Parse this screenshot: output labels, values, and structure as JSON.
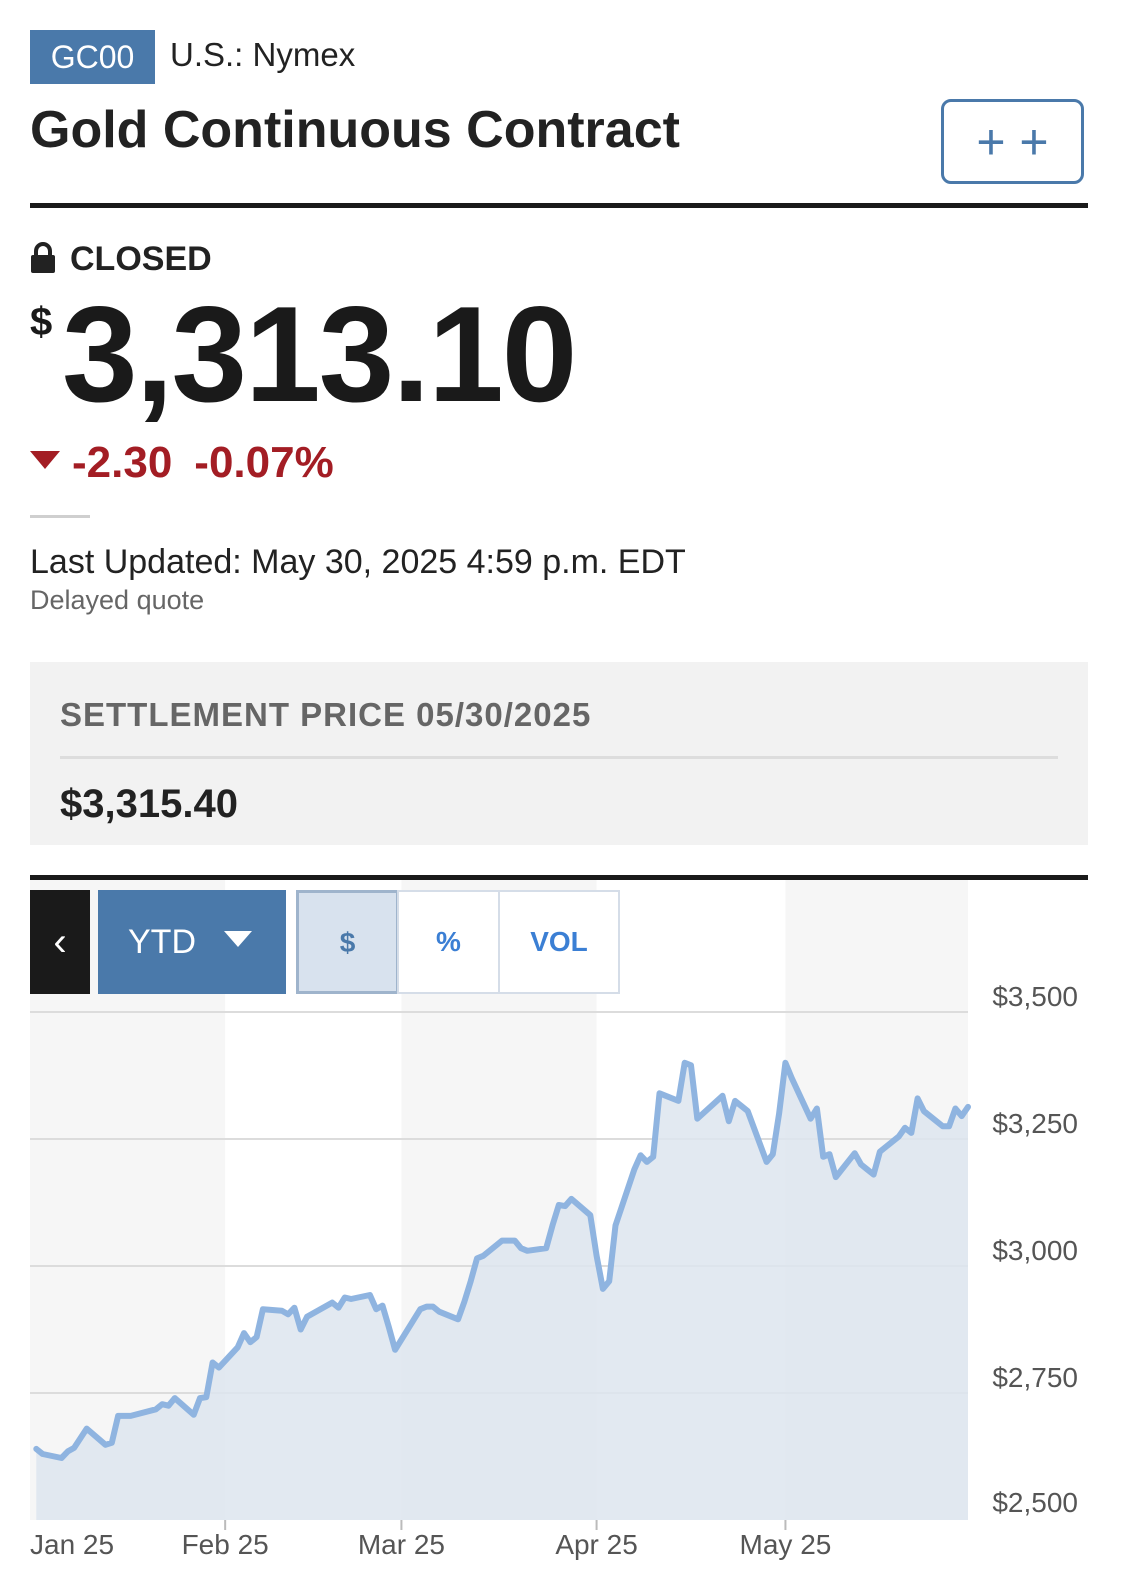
{
  "header": {
    "ticker": "GC00",
    "exchange": "U.S.: Nymex",
    "name": "Gold Continuous Contract",
    "watch_label": "+ +"
  },
  "quote": {
    "status": "CLOSED",
    "currency": "$",
    "price": "3,313.10",
    "change": "-2.30",
    "change_pct": "-0.07%",
    "direction": "down",
    "last_updated": "Last Updated: May 30, 2025 4:59 p.m. EDT",
    "delayed": "Delayed quote"
  },
  "settlement": {
    "label": "SETTLEMENT PRICE 05/30/2025",
    "value": "$3,315.40"
  },
  "chart_controls": {
    "back": "‹",
    "range": "YTD",
    "modes": [
      "$",
      "%",
      "VOL"
    ],
    "active_mode": "$"
  },
  "colors": {
    "accent": "#4a79aa",
    "negative": "#a31d24",
    "line": "#8fb4e0",
    "fill": "#dde5ee"
  },
  "chart_data": {
    "type": "area",
    "x_ticks": [
      "Jan 25",
      "Feb 25",
      "Mar 25",
      "Apr 25",
      "May 25"
    ],
    "y_ticks": [
      "$2,500",
      "$2,750",
      "$3,000",
      "$3,250",
      "$3,500"
    ],
    "ylim": [
      2500,
      3500
    ],
    "grid": true,
    "y_axis_side": "right",
    "x": [
      "2025-01-02",
      "2025-01-03",
      "2025-01-06",
      "2025-01-07",
      "2025-01-08",
      "2025-01-10",
      "2025-01-13",
      "2025-01-14",
      "2025-01-15",
      "2025-01-17",
      "2025-01-21",
      "2025-01-22",
      "2025-01-23",
      "2025-01-24",
      "2025-01-27",
      "2025-01-28",
      "2025-01-29",
      "2025-01-30",
      "2025-01-31",
      "2025-02-03",
      "2025-02-04",
      "2025-02-05",
      "2025-02-06",
      "2025-02-07",
      "2025-02-10",
      "2025-02-11",
      "2025-02-12",
      "2025-02-13",
      "2025-02-14",
      "2025-02-18",
      "2025-02-19",
      "2025-02-20",
      "2025-02-21",
      "2025-02-24",
      "2025-02-25",
      "2025-02-26",
      "2025-02-27",
      "2025-02-28",
      "2025-03-03",
      "2025-03-04",
      "2025-03-05",
      "2025-03-06",
      "2025-03-07",
      "2025-03-10",
      "2025-03-11",
      "2025-03-12",
      "2025-03-13",
      "2025-03-14",
      "2025-03-17",
      "2025-03-18",
      "2025-03-19",
      "2025-03-20",
      "2025-03-21",
      "2025-03-24",
      "2025-03-25",
      "2025-03-26",
      "2025-03-27",
      "2025-03-28",
      "2025-03-31",
      "2025-04-01",
      "2025-04-02",
      "2025-04-03",
      "2025-04-04",
      "2025-04-07",
      "2025-04-08",
      "2025-04-09",
      "2025-04-10",
      "2025-04-11",
      "2025-04-14",
      "2025-04-15",
      "2025-04-16",
      "2025-04-17",
      "2025-04-21",
      "2025-04-22",
      "2025-04-23",
      "2025-04-24",
      "2025-04-25",
      "2025-04-28",
      "2025-04-29",
      "2025-04-30",
      "2025-05-01",
      "2025-05-02",
      "2025-05-05",
      "2025-05-06",
      "2025-05-07",
      "2025-05-08",
      "2025-05-09",
      "2025-05-12",
      "2025-05-13",
      "2025-05-14",
      "2025-05-15",
      "2025-05-16",
      "2025-05-19",
      "2025-05-20",
      "2025-05-21",
      "2025-05-22",
      "2025-05-23",
      "2025-05-26",
      "2025-05-27",
      "2025-05-28",
      "2025-05-29",
      "2025-05-30"
    ],
    "y": [
      2640,
      2630,
      2622,
      2635,
      2642,
      2680,
      2648,
      2652,
      2705,
      2705,
      2718,
      2728,
      2725,
      2740,
      2707,
      2740,
      2742,
      2810,
      2800,
      2840,
      2868,
      2850,
      2860,
      2915,
      2912,
      2905,
      2918,
      2875,
      2900,
      2928,
      2918,
      2938,
      2935,
      2943,
      2915,
      2922,
      2880,
      2835,
      2895,
      2915,
      2920,
      2920,
      2910,
      2895,
      2930,
      2970,
      3015,
      3020,
      3050,
      3050,
      3050,
      3035,
      3030,
      3035,
      3080,
      3120,
      3118,
      3132,
      3100,
      3020,
      2955,
      2970,
      3080,
      3190,
      3218,
      3205,
      3215,
      3340,
      3325,
      3400,
      3395,
      3290,
      3335,
      3285,
      3325,
      3315,
      3305,
      3205,
      3220,
      3300,
      3400,
      3370,
      3290,
      3310,
      3215,
      3220,
      3175,
      3222,
      3200,
      3190,
      3180,
      3225,
      3255,
      3272,
      3262,
      3330,
      3305,
      3275,
      3275,
      3310,
      3295,
      3313.1
    ]
  }
}
